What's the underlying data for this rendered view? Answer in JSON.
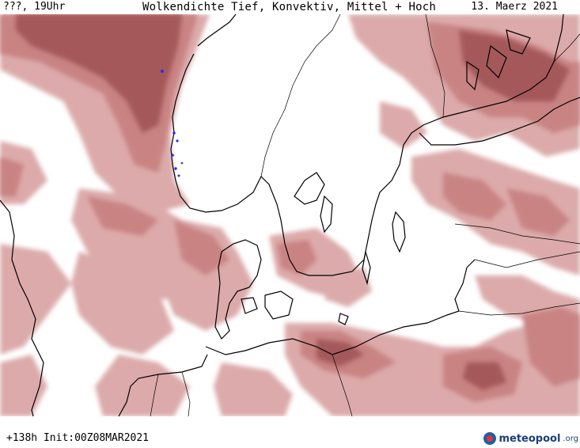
{
  "header": {
    "left": "???, 19Uhr",
    "title": "Wolkendichte  Tief, Konvektiv, Mittel + Hoch",
    "date": "13. Maerz 2021"
  },
  "footer": {
    "run_info": "+138h Init:00Z08MAR2021",
    "logo_main": "meteopool",
    "logo_tld": ".org"
  },
  "colors": {
    "cloud_light": "#dcaaaa",
    "cloud_mid": "#c98383",
    "cloud_dark": "#a4585a",
    "coast": "#000000",
    "precip": "#2a2aff"
  }
}
